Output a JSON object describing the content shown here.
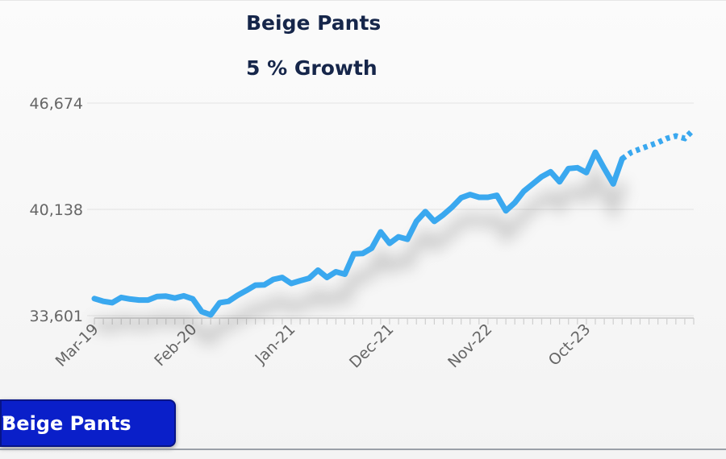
{
  "chart_data": {
    "type": "line",
    "title": "Beige Pants",
    "subtitle": "5 % Growth",
    "y_ticks": [
      "46,674",
      "40,138",
      "33,601"
    ],
    "ylim": [
      33601,
      46674
    ],
    "x_ticks": [
      "Mar-19",
      "Feb-20",
      "Jan-21",
      "Dec-21",
      "Nov-22",
      "Oct-23"
    ],
    "x_tick_index": [
      0,
      11,
      22,
      33,
      44,
      55
    ],
    "grid": true,
    "series": [
      {
        "style": "solid",
        "color": "#3aa8ef",
        "values": [
          34650,
          34480,
          34400,
          34720,
          34620,
          34560,
          34560,
          34780,
          34800,
          34680,
          34820,
          34630,
          33850,
          33650,
          34400,
          34480,
          34850,
          35150,
          35480,
          35500,
          35830,
          35950,
          35580,
          35750,
          35900,
          36400,
          35950,
          36300,
          36150,
          37400,
          37430,
          37750,
          38750,
          38050,
          38450,
          38300,
          39400,
          40000,
          39400,
          39800,
          40280,
          40850,
          41050,
          40880,
          40880,
          41000,
          40050,
          40550,
          41250,
          41700,
          42150,
          42450,
          41830,
          42650,
          42700,
          42400,
          43650,
          42650,
          41700,
          43250
        ]
      },
      {
        "style": "dotted",
        "color": "#3aa8ef",
        "forecast": true,
        "values": [
          43250,
          43640,
          43850,
          44050,
          44250,
          44500,
          44650,
          44500,
          45050
        ]
      }
    ]
  },
  "selector": {
    "label": "Beige Pants"
  }
}
